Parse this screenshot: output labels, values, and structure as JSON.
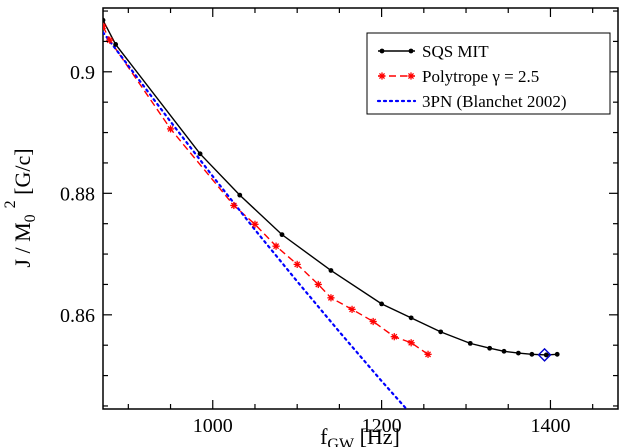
{
  "chart_data": {
    "type": "line",
    "title": "",
    "xlabel": "f_GW [Hz]",
    "ylabel": "J / M_0^2 [G/c]",
    "xlabel_main": "f",
    "xlabel_sub": "GW",
    "xlabel_rest": " [Hz]",
    "ylabel_main": "J / M",
    "ylabel_sub": "0",
    "ylabel_sup": "2",
    "ylabel_rest": " [G/c]",
    "xlim": [
      870,
      1480
    ],
    "ylim": [
      0.8445,
      0.9105
    ],
    "xticks": [
      1000,
      1200,
      1400
    ],
    "xtick_labels": [
      "1000",
      "1200",
      "1400"
    ],
    "yticks": [
      0.86,
      0.88,
      0.9
    ],
    "ytick_labels": [
      "0.86",
      "0.88",
      "0.9"
    ],
    "grid": false,
    "legend_position": "top-right",
    "series": [
      {
        "name": "SQS MIT",
        "color": "#000000",
        "line_style": "solid",
        "marker": "dot",
        "x": [
          870,
          885,
          985,
          1032,
          1082,
          1140,
          1200,
          1235,
          1270,
          1305,
          1328,
          1345,
          1362,
          1378,
          1395,
          1408
        ],
        "y": [
          0.9085,
          0.9045,
          0.8865,
          0.8797,
          0.8732,
          0.8673,
          0.8618,
          0.8595,
          0.8572,
          0.8553,
          0.8545,
          0.854,
          0.8537,
          0.8535,
          0.8534,
          0.8535
        ]
      },
      {
        "name": "Polytrope  γ = 2.5",
        "color": "#ff0000",
        "line_style": "dashed",
        "marker": "asterisk",
        "x": [
          870,
          878,
          950,
          1025,
          1050,
          1075,
          1100,
          1125,
          1140,
          1165,
          1190,
          1215,
          1235,
          1255
        ],
        "y": [
          0.9075,
          0.9052,
          0.8906,
          0.878,
          0.8749,
          0.8713,
          0.8683,
          0.865,
          0.8628,
          0.8609,
          0.8589,
          0.8564,
          0.8554,
          0.8535
        ]
      },
      {
        "name": "3PN (Blanchet 2002)",
        "color": "#0000ff",
        "line_style": "dotted",
        "marker": "none",
        "x": [
          870,
          900,
          950,
          1000,
          1050,
          1100,
          1150,
          1200,
          1250,
          1280
        ],
        "y": [
          0.9065,
          0.901,
          0.8918,
          0.8828,
          0.874,
          0.8655,
          0.8572,
          0.8491,
          0.8413,
          0.8367
        ]
      }
    ],
    "highlight_marker": {
      "x": 1393,
      "y": 0.8534,
      "color": "#0000cc",
      "shape": "diamond"
    }
  }
}
